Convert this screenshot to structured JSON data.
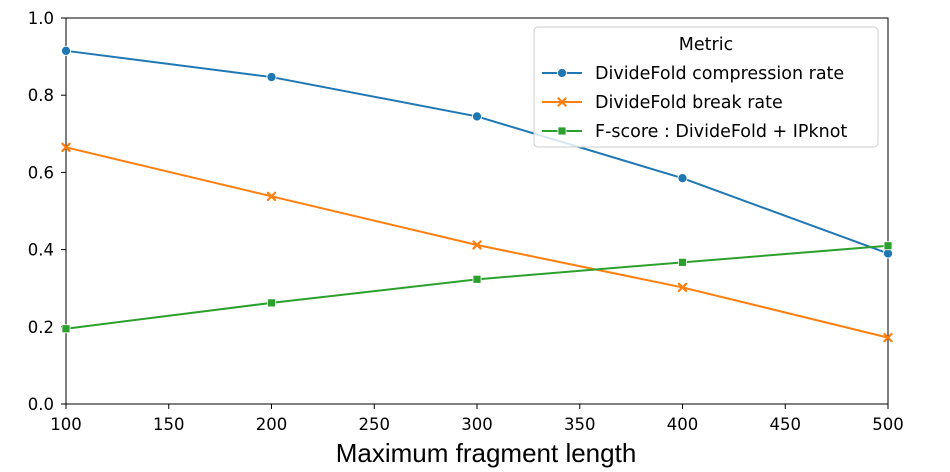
{
  "chart_data": {
    "type": "line",
    "title": "",
    "xlabel": "Maximum fragment length",
    "ylabel": "",
    "x": [
      100,
      200,
      300,
      400,
      500
    ],
    "xlim": [
      100,
      500
    ],
    "ylim": [
      0.0,
      1.0
    ],
    "xticks": [
      100,
      150,
      200,
      250,
      300,
      350,
      400,
      450,
      500
    ],
    "xtick_labels": [
      "100",
      "150",
      "200",
      "250",
      "300",
      "350",
      "400",
      "450",
      "500"
    ],
    "yticks": [
      0.0,
      0.2,
      0.4,
      0.6,
      0.8,
      1.0
    ],
    "ytick_labels": [
      "0.0",
      "0.2",
      "0.4",
      "0.6",
      "0.8",
      "1.0"
    ],
    "grid": false,
    "legend": {
      "title": "Metric",
      "placement": "top-right"
    },
    "series": [
      {
        "name": "DivideFold compression rate",
        "color": "#1f77b4",
        "marker": "circle",
        "values": [
          0.915,
          0.847,
          0.745,
          0.585,
          0.39
        ]
      },
      {
        "name": "DivideFold break rate",
        "color": "#ff7f0e",
        "marker": "x",
        "values": [
          0.665,
          0.538,
          0.412,
          0.302,
          0.172
        ]
      },
      {
        "name": "F-score : DivideFold + IPknot",
        "color": "#2ca02c",
        "marker": "square",
        "values": [
          0.195,
          0.262,
          0.323,
          0.367,
          0.41
        ]
      }
    ]
  }
}
